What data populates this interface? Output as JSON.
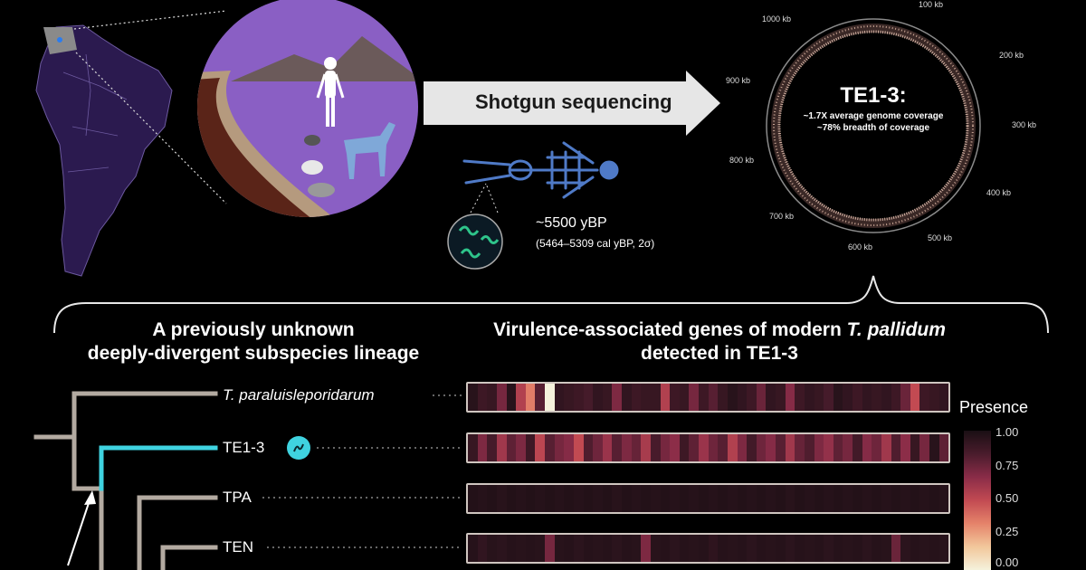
{
  "header_arrow": {
    "label": "Shotgun sequencing"
  },
  "sample": {
    "age": "~5500 yBP",
    "age_range": "(5464–5309 cal yBP, 2σ)"
  },
  "genome_ring": {
    "title": "TE1-3:",
    "line1": "~1.7X average genome coverage",
    "line2": "~78% breadth of coverage",
    "ticks": [
      "1000 kb",
      "100 kb",
      "200 kb",
      "300 kb",
      "400 kb",
      "500 kb",
      "600 kb",
      "700 kb",
      "800 kb",
      "900 kb"
    ]
  },
  "left_title": {
    "line1": "A previously unknown",
    "line2": "deeply-divergent subspecies lineage"
  },
  "right_title": {
    "line1_pre": "Virulence-associated genes of modern ",
    "line1_italic": "T. pallidum",
    "line2": "detected in TE1-3"
  },
  "taxa": [
    {
      "label": "T. paraluisleporidarum",
      "italic": true
    },
    {
      "label": "TE1-3",
      "italic": false
    },
    {
      "label": "TPA",
      "italic": false
    },
    {
      "label": "TEN",
      "italic": false
    }
  ],
  "colors": {
    "tree": "#b3aaa1",
    "highlight": "#3fd3e0",
    "bg": "#000000",
    "map": "#2b1a4f",
    "scene": "#8a5fc4"
  },
  "chart_data": {
    "type": "heatmap",
    "legend_title": "Presence",
    "scale_ticks": [
      "1.00",
      "0.75",
      "0.50",
      "0.25",
      "0.00"
    ],
    "value_range": [
      0,
      1
    ],
    "rows": [
      {
        "name": "T. paraluisleporidarum",
        "values": [
          0.95,
          0.88,
          0.9,
          0.72,
          0.95,
          0.55,
          0.35,
          0.8,
          0.0,
          0.92,
          0.9,
          0.88,
          0.85,
          0.92,
          0.9,
          0.7,
          0.92,
          0.88,
          0.9,
          0.9,
          0.55,
          0.88,
          0.9,
          0.72,
          0.88,
          0.8,
          0.9,
          0.95,
          0.92,
          0.88,
          0.75,
          0.92,
          0.9,
          0.68,
          0.88,
          0.92,
          0.9,
          0.85,
          0.95,
          0.92,
          0.88,
          0.92,
          0.9,
          0.92,
          0.88,
          0.75,
          0.5,
          0.88,
          0.9,
          0.92
        ]
      },
      {
        "name": "TE1-3",
        "values": [
          0.9,
          0.7,
          0.85,
          0.6,
          0.78,
          0.7,
          0.88,
          0.52,
          0.8,
          0.72,
          0.68,
          0.5,
          0.82,
          0.74,
          0.62,
          0.8,
          0.7,
          0.76,
          0.58,
          0.84,
          0.72,
          0.66,
          0.88,
          0.78,
          0.62,
          0.74,
          0.8,
          0.55,
          0.7,
          0.86,
          0.74,
          0.68,
          0.8,
          0.6,
          0.76,
          0.82,
          0.7,
          0.64,
          0.78,
          0.72,
          0.86,
          0.68,
          0.74,
          0.6,
          0.82,
          0.66,
          0.9,
          0.72,
          0.95,
          0.78
        ]
      },
      {
        "name": "TPA",
        "values": [
          0.97,
          0.96,
          0.97,
          0.95,
          0.97,
          0.96,
          0.97,
          0.96,
          0.97,
          0.96,
          0.97,
          0.96,
          0.97,
          0.96,
          0.97,
          0.95,
          0.97,
          0.96,
          0.97,
          0.96,
          0.97,
          0.96,
          0.97,
          0.96,
          0.97,
          0.96,
          0.97,
          0.96,
          0.97,
          0.96,
          0.97,
          0.96,
          0.97,
          0.95,
          0.97,
          0.96,
          0.97,
          0.96,
          0.97,
          0.96,
          0.97,
          0.96,
          0.97,
          0.96,
          0.97,
          0.96,
          0.97,
          0.96,
          0.97,
          0.96
        ]
      },
      {
        "name": "TEN",
        "values": [
          0.96,
          0.92,
          0.95,
          0.94,
          0.96,
          0.95,
          0.96,
          0.95,
          0.72,
          0.95,
          0.96,
          0.94,
          0.96,
          0.95,
          0.96,
          0.94,
          0.96,
          0.95,
          0.7,
          0.95,
          0.96,
          0.94,
          0.96,
          0.95,
          0.96,
          0.93,
          0.96,
          0.95,
          0.96,
          0.94,
          0.96,
          0.95,
          0.96,
          0.94,
          0.96,
          0.95,
          0.96,
          0.94,
          0.96,
          0.95,
          0.96,
          0.94,
          0.96,
          0.95,
          0.75,
          0.94,
          0.96,
          0.95,
          0.96,
          0.95
        ]
      }
    ]
  }
}
